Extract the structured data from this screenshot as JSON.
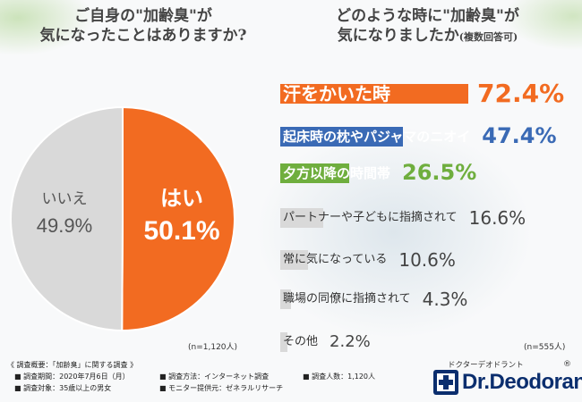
{
  "titles": {
    "left_line1": "ご自身の\"加齢臭\"が",
    "left_line2": "気になったことはありますか?",
    "right_line1": "どのような時に\"加齢臭\"が",
    "right_line2": "気になりましたか",
    "right_note": "(複数回答可)"
  },
  "chart_data": [
    {
      "type": "pie",
      "slices": [
        {
          "label": "はい",
          "value": 50.1,
          "color": "#f26b21"
        },
        {
          "label": "いいえ",
          "value": 49.9,
          "color": "#d9d9d9"
        }
      ],
      "note": "(n=1,120人)"
    },
    {
      "type": "bar",
      "orientation": "horizontal",
      "categories": [
        "汗をかいた時",
        "起床時の枕やパジャマのニオイ",
        "夕方以降の時間帯",
        "パートナーや子どもに指摘されて",
        "常に気になっている",
        "職場の同僚に指摘されて",
        "その他"
      ],
      "values": [
        72.4,
        47.4,
        26.5,
        16.6,
        10.6,
        4.3,
        2.2
      ],
      "colors": [
        "#f26b21",
        "#3a6ab5",
        "#6fae3e",
        "#d9d9d9",
        "#d9d9d9",
        "#d9d9d9",
        "#d9d9d9"
      ],
      "value_colors": [
        "#f26b21",
        "#3a6ab5",
        "#6fae3e",
        "#444444",
        "#444444",
        "#444444",
        "#444444"
      ],
      "unit": "%",
      "note": "(n=555人)"
    }
  ],
  "footer": {
    "summary": "《 調査概要：「加齢臭」に関する調査 》",
    "period": "■ 調査期間：2020年7月6日（月）",
    "target": "■ 調査対象：35歳以上の男女",
    "method": "■ 調査方法：インターネット調査",
    "provider": "■ モニター提供元：ゼネラルリサーチ",
    "count": "■ 調査人数：1,120人"
  },
  "brand": {
    "kana": "ドクターデオドラント",
    "name": "Dr.Deodorant",
    "reg": "®"
  }
}
